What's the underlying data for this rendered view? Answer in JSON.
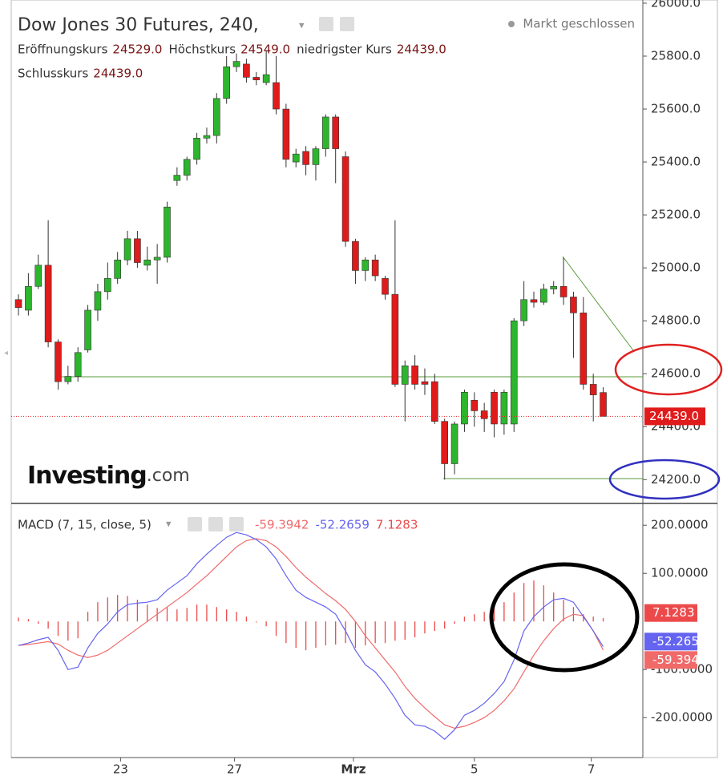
{
  "chart_data": [
    {
      "type": "candlestick",
      "title": "Dow Jones 30 Futures, 240,",
      "status": "Markt geschlossen",
      "ohlc_legend": [
        {
          "label": "Eröffnungskurs",
          "value": "24529.0"
        },
        {
          "label": "Höchstkurs",
          "value": "24549.0"
        },
        {
          "label": "niedrigster Kurs",
          "value": "24439.0"
        },
        {
          "label": "Schlusskurs",
          "value": "24439.0"
        }
      ],
      "watermark": [
        "Investing",
        ".com"
      ],
      "open": [
        24880,
        24840,
        24930,
        25010,
        24720,
        24570,
        24590,
        24690,
        24840,
        24910,
        24960,
        25030,
        25110,
        25010,
        25030,
        25040,
        25330,
        25350,
        25410,
        25490,
        25500,
        25640,
        25760,
        25770,
        25720,
        25700,
        25700,
        25600,
        25400,
        25440,
        25390,
        25450,
        25570,
        25420,
        25100,
        24990,
        25030,
        24960,
        24900,
        24560,
        24630,
        24570,
        24570,
        24420,
        24260,
        24410,
        24500,
        24460,
        24530,
        24410,
        24410,
        24800,
        24880,
        24870,
        24920,
        24930,
        24890,
        24830,
        24560,
        24529
      ],
      "high": [
        24900,
        24980,
        25050,
        25180,
        24730,
        24630,
        24700,
        24860,
        24940,
        25020,
        25060,
        25140,
        25140,
        25080,
        25090,
        25250,
        25380,
        25420,
        25510,
        25530,
        25660,
        25800,
        25810,
        25790,
        25740,
        25820,
        25800,
        25620,
        25450,
        25460,
        25460,
        25580,
        25580,
        25440,
        25110,
        25040,
        25050,
        24970,
        25180,
        24650,
        24670,
        24620,
        24600,
        24430,
        24420,
        24540,
        24530,
        24490,
        24540,
        24540,
        24810,
        24950,
        24910,
        24940,
        24950,
        25040,
        24910,
        24890,
        24600,
        24549
      ],
      "low": [
        24820,
        24820,
        24920,
        24700,
        24540,
        24560,
        24570,
        24680,
        24800,
        24880,
        24940,
        25010,
        25000,
        24990,
        24940,
        25020,
        25310,
        25330,
        25390,
        25470,
        25470,
        25620,
        25740,
        25700,
        25690,
        25690,
        25580,
        25380,
        25380,
        25350,
        25330,
        25420,
        25320,
        25080,
        24940,
        24950,
        24950,
        24880,
        24550,
        24420,
        24540,
        24520,
        24410,
        24200,
        24220,
        24380,
        24400,
        24380,
        24360,
        24370,
        24380,
        24780,
        24850,
        24860,
        24900,
        24860,
        24660,
        24540,
        24420,
        24439
      ],
      "close": [
        24850,
        24930,
        25010,
        24720,
        24570,
        24590,
        24680,
        24840,
        24910,
        24960,
        25030,
        25110,
        25020,
        25030,
        25040,
        25230,
        25350,
        25410,
        25490,
        25500,
        25640,
        25760,
        25780,
        25720,
        25710,
        25730,
        25600,
        25410,
        25430,
        25390,
        25450,
        25570,
        25450,
        25100,
        24990,
        25030,
        24970,
        24900,
        24560,
        24630,
        24560,
        24560,
        24420,
        24260,
        24410,
        24530,
        24460,
        24430,
        24410,
        24530,
        24800,
        24880,
        24870,
        24920,
        24930,
        24890,
        24830,
        24560,
        24520,
        24439
      ],
      "up_color": "#2db52d",
      "down_color": "#e01b1b",
      "last_price": {
        "value": 24439,
        "label": "24439.0"
      },
      "xlim": [
        -0.73,
        63
      ],
      "ylim": [
        24110,
        26012
      ],
      "yticks": [
        {
          "value": 24200,
          "label": "24200.0"
        },
        {
          "value": 24400,
          "label": "24400.0"
        },
        {
          "value": 24600,
          "label": "24600.0"
        },
        {
          "value": 24800,
          "label": "24800.0"
        },
        {
          "value": 25000,
          "label": "25000.0"
        },
        {
          "value": 25200,
          "label": "25200.0"
        },
        {
          "value": 25400,
          "label": "25400.0"
        },
        {
          "value": 25600,
          "label": "25600.0"
        },
        {
          "value": 25800,
          "label": "25800.0"
        },
        {
          "value": 26000,
          "label": "26000.0"
        }
      ]
    },
    {
      "type": "macd",
      "title": "MACD (7, 15, close, 5)",
      "series": [
        {
          "color": "#f06a6a",
          "last_label": "-59.3942",
          "values": [
            -50,
            -48,
            -45,
            -42,
            -47,
            -60,
            -70,
            -75,
            -70,
            -60,
            -45,
            -30,
            -15,
            0,
            15,
            30,
            45,
            60,
            78,
            95,
            115,
            135,
            155,
            168,
            172,
            168,
            155,
            135,
            112,
            92,
            75,
            58,
            43,
            25,
            0,
            -30,
            -55,
            -80,
            -105,
            -135,
            -160,
            -180,
            -198,
            -215,
            -222,
            -218,
            -210,
            -200,
            -185,
            -165,
            -140,
            -105,
            -70,
            -40,
            -15,
            5,
            15,
            12,
            -20,
            -59.3942
          ]
        },
        {
          "color": "#6464f0",
          "last_label": "-52.2659",
          "values": [
            -50,
            -45,
            -38,
            -33,
            -60,
            -100,
            -95,
            -55,
            -25,
            -5,
            20,
            35,
            38,
            40,
            45,
            65,
            80,
            95,
            120,
            140,
            158,
            175,
            185,
            180,
            170,
            155,
            130,
            95,
            65,
            50,
            40,
            30,
            15,
            -20,
            -60,
            -90,
            -105,
            -130,
            -160,
            -195,
            -215,
            -218,
            -228,
            -245,
            -225,
            -195,
            -185,
            -170,
            -150,
            -125,
            -80,
            -20,
            10,
            30,
            45,
            48,
            40,
            10,
            -20,
            -52.2659
          ]
        }
      ],
      "histogram": {
        "color": "#ec4a4a",
        "last_label": "7.1283",
        "values": [
          8,
          5,
          -5,
          -15,
          -30,
          -40,
          -35,
          20,
          40,
          50,
          55,
          53,
          45,
          35,
          28,
          30,
          25,
          28,
          35,
          35,
          30,
          25,
          20,
          10,
          -2,
          -10,
          -30,
          -45,
          -55,
          -60,
          -55,
          -50,
          -48,
          -45,
          -55,
          -50,
          -45,
          -45,
          -40,
          -38,
          -33,
          -25,
          -20,
          -15,
          -5,
          10,
          15,
          20,
          30,
          40,
          60,
          80,
          85,
          75,
          60,
          45,
          30,
          15,
          10,
          7.1283
        ]
      },
      "xlim": [
        -0.73,
        63
      ],
      "ylim": [
        -283,
        242
      ],
      "yticks": [
        {
          "value": -200,
          "label": "-200.0000"
        },
        {
          "value": -100,
          "label": "-100.0000"
        },
        {
          "value": 100,
          "label": "100.0000"
        },
        {
          "value": 200,
          "label": "200.0000"
        }
      ],
      "xticks": [
        {
          "value": 10.3,
          "label": "23"
        },
        {
          "value": 21.8,
          "label": "27"
        },
        {
          "value": 33.8,
          "label": "Mrz"
        },
        {
          "value": 46,
          "label": "5"
        },
        {
          "value": 57.8,
          "label": "7"
        }
      ]
    }
  ]
}
